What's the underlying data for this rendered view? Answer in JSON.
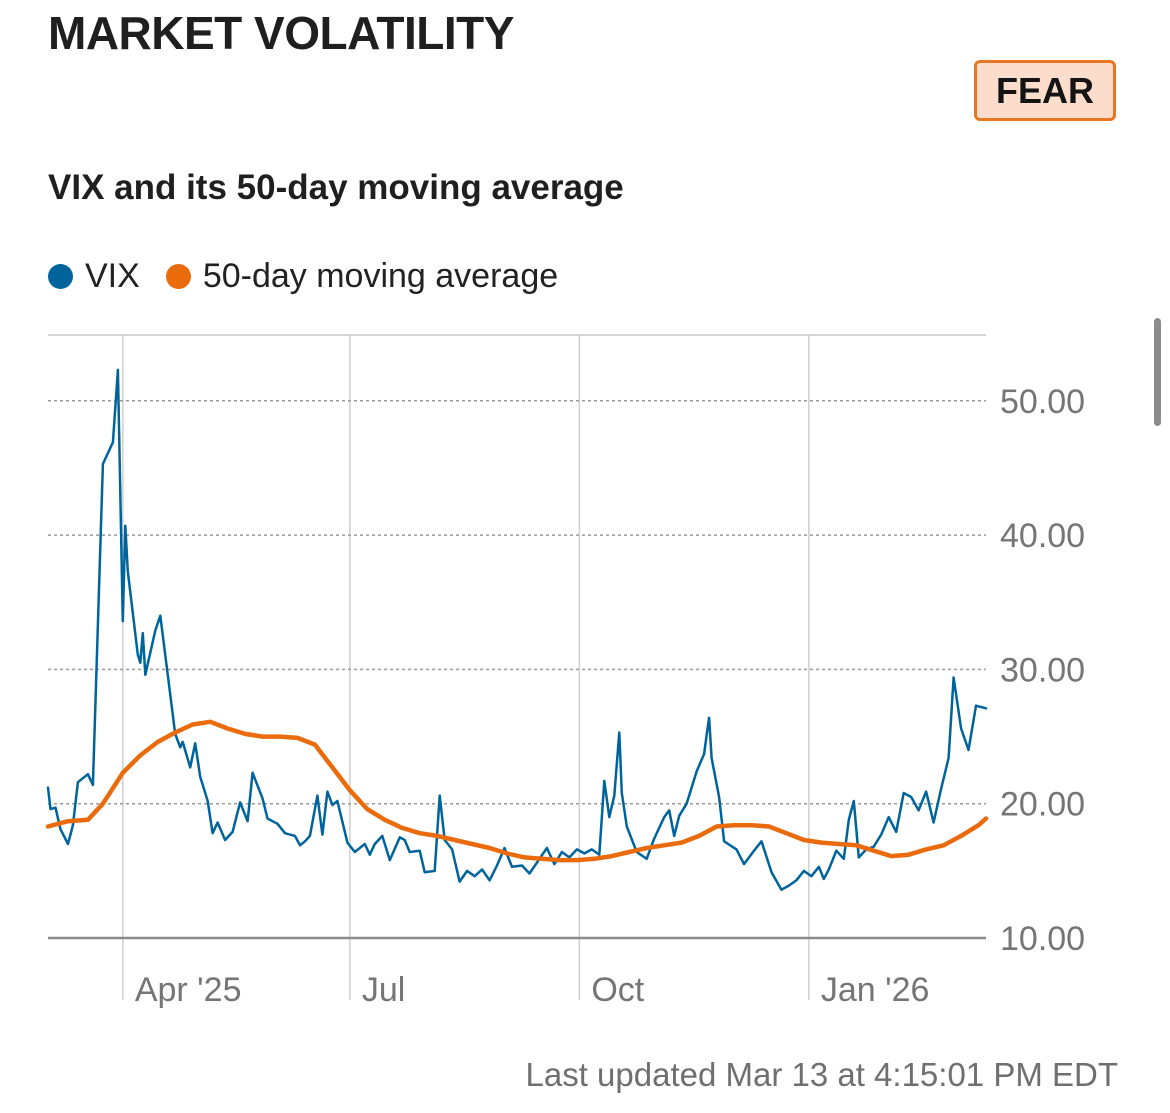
{
  "header": {
    "title": "MARKET VOLATILITY",
    "sentiment_badge": "FEAR",
    "subtitle": "VIX and its 50-day moving average"
  },
  "legend": [
    {
      "label": "VIX",
      "color": "#00649c"
    },
    {
      "label": "50-day moving average",
      "color": "#ea6b0c"
    }
  ],
  "footer": {
    "last_updated": "Last updated Mar 13 at 4:15:01 PM EDT"
  },
  "chart_data": {
    "type": "line",
    "title": "VIX and its 50-day moving average",
    "x_ticks": [
      {
        "label": "Apr '25",
        "date": "2025-04-01"
      },
      {
        "label": "Jul",
        "date": "2025-07-01"
      },
      {
        "label": "Oct",
        "date": "2025-10-01"
      },
      {
        "label": "Jan '26",
        "date": "2026-01-01"
      }
    ],
    "y_ticks": [
      {
        "label": "10.00",
        "value": 10
      },
      {
        "label": "20.00",
        "value": 20
      },
      {
        "label": "30.00",
        "value": 30
      },
      {
        "label": "40.00",
        "value": 40
      },
      {
        "label": "50.00",
        "value": 50
      }
    ],
    "xlim": [
      "2025-03-02",
      "2026-03-13"
    ],
    "ylim": [
      10,
      55
    ],
    "grid": true,
    "legend_position": "top-left",
    "series": [
      {
        "name": "VIX",
        "color": "#00649c",
        "points": [
          [
            "2025-03-02",
            21.2
          ],
          [
            "2025-03-03",
            19.6
          ],
          [
            "2025-03-05",
            19.7
          ],
          [
            "2025-03-07",
            18.1
          ],
          [
            "2025-03-10",
            17.0
          ],
          [
            "2025-03-12",
            18.4
          ],
          [
            "2025-03-14",
            21.6
          ],
          [
            "2025-03-18",
            22.2
          ],
          [
            "2025-03-20",
            21.4
          ],
          [
            "2025-03-24",
            45.3
          ],
          [
            "2025-03-28",
            46.9
          ],
          [
            "2025-03-30",
            52.3
          ],
          [
            "2025-04-01",
            33.6
          ],
          [
            "2025-04-02",
            40.7
          ],
          [
            "2025-04-03",
            37.3
          ],
          [
            "2025-04-07",
            31.1
          ],
          [
            "2025-04-08",
            30.5
          ],
          [
            "2025-04-09",
            32.7
          ],
          [
            "2025-04-10",
            29.6
          ],
          [
            "2025-04-14",
            32.9
          ],
          [
            "2025-04-16",
            34.0
          ],
          [
            "2025-04-22",
            25.2
          ],
          [
            "2025-04-24",
            24.2
          ],
          [
            "2025-04-25",
            24.6
          ],
          [
            "2025-04-28",
            22.7
          ],
          [
            "2025-04-30",
            24.5
          ],
          [
            "2025-05-02",
            22.0
          ],
          [
            "2025-05-05",
            20.2
          ],
          [
            "2025-05-07",
            17.8
          ],
          [
            "2025-05-09",
            18.6
          ],
          [
            "2025-05-12",
            17.3
          ],
          [
            "2025-05-15",
            17.9
          ],
          [
            "2025-05-18",
            20.1
          ],
          [
            "2025-05-21",
            18.7
          ],
          [
            "2025-05-23",
            22.3
          ],
          [
            "2025-05-27",
            20.4
          ],
          [
            "2025-05-29",
            18.9
          ],
          [
            "2025-06-02",
            18.5
          ],
          [
            "2025-06-05",
            17.8
          ],
          [
            "2025-06-09",
            17.6
          ],
          [
            "2025-06-11",
            16.9
          ],
          [
            "2025-06-13",
            17.2
          ],
          [
            "2025-06-15",
            17.6
          ],
          [
            "2025-06-18",
            20.6
          ],
          [
            "2025-06-20",
            17.7
          ],
          [
            "2025-06-22",
            20.9
          ],
          [
            "2025-06-24",
            19.9
          ],
          [
            "2025-06-26",
            20.2
          ],
          [
            "2025-06-30",
            17.1
          ],
          [
            "2025-07-03",
            16.4
          ],
          [
            "2025-07-07",
            17.0
          ],
          [
            "2025-07-09",
            16.2
          ],
          [
            "2025-07-11",
            17.0
          ],
          [
            "2025-07-14",
            17.6
          ],
          [
            "2025-07-17",
            15.8
          ],
          [
            "2025-07-21",
            17.5
          ],
          [
            "2025-07-23",
            17.3
          ],
          [
            "2025-07-25",
            16.4
          ],
          [
            "2025-07-29",
            16.5
          ],
          [
            "2025-07-31",
            14.9
          ],
          [
            "2025-08-04",
            15.0
          ],
          [
            "2025-08-06",
            20.6
          ],
          [
            "2025-08-08",
            17.3
          ],
          [
            "2025-08-11",
            16.6
          ],
          [
            "2025-08-14",
            14.2
          ],
          [
            "2025-08-17",
            15.0
          ],
          [
            "2025-08-20",
            14.6
          ],
          [
            "2025-08-23",
            15.1
          ],
          [
            "2025-08-26",
            14.3
          ],
          [
            "2025-08-29",
            15.4
          ],
          [
            "2025-09-01",
            16.7
          ],
          [
            "2025-09-04",
            15.3
          ],
          [
            "2025-09-08",
            15.4
          ],
          [
            "2025-09-11",
            14.8
          ],
          [
            "2025-09-15",
            15.9
          ],
          [
            "2025-09-18",
            16.7
          ],
          [
            "2025-09-21",
            15.5
          ],
          [
            "2025-09-24",
            16.4
          ],
          [
            "2025-09-27",
            16.0
          ],
          [
            "2025-09-30",
            16.6
          ],
          [
            "2025-10-03",
            16.3
          ],
          [
            "2025-10-06",
            16.6
          ],
          [
            "2025-10-09",
            16.2
          ],
          [
            "2025-10-11",
            21.7
          ],
          [
            "2025-10-13",
            19.0
          ],
          [
            "2025-10-15",
            20.6
          ],
          [
            "2025-10-17",
            25.3
          ],
          [
            "2025-10-18",
            20.8
          ],
          [
            "2025-10-20",
            18.3
          ],
          [
            "2025-10-24",
            16.4
          ],
          [
            "2025-10-28",
            15.9
          ],
          [
            "2025-10-31",
            17.4
          ],
          [
            "2025-11-04",
            19.0
          ],
          [
            "2025-11-06",
            19.5
          ],
          [
            "2025-11-08",
            17.6
          ],
          [
            "2025-11-10",
            19.1
          ],
          [
            "2025-11-13",
            20.0
          ],
          [
            "2025-11-17",
            22.4
          ],
          [
            "2025-11-20",
            23.7
          ],
          [
            "2025-11-21",
            25.1
          ],
          [
            "2025-11-22",
            26.4
          ],
          [
            "2025-11-23",
            23.4
          ],
          [
            "2025-11-26",
            20.5
          ],
          [
            "2025-11-28",
            17.2
          ],
          [
            "2025-12-03",
            16.6
          ],
          [
            "2025-12-06",
            15.5
          ],
          [
            "2025-12-10",
            16.5
          ],
          [
            "2025-12-13",
            17.2
          ],
          [
            "2025-12-17",
            14.9
          ],
          [
            "2025-12-21",
            13.6
          ],
          [
            "2025-12-24",
            13.9
          ],
          [
            "2025-12-27",
            14.3
          ],
          [
            "2025-12-30",
            15.0
          ],
          [
            "2026-01-02",
            14.6
          ],
          [
            "2026-01-05",
            15.3
          ],
          [
            "2026-01-07",
            14.4
          ],
          [
            "2026-01-09",
            15.1
          ],
          [
            "2026-01-12",
            16.5
          ],
          [
            "2026-01-15",
            15.9
          ],
          [
            "2026-01-17",
            18.8
          ],
          [
            "2026-01-19",
            20.2
          ],
          [
            "2026-01-21",
            16.0
          ],
          [
            "2026-01-24",
            16.6
          ],
          [
            "2026-01-27",
            16.8
          ],
          [
            "2026-01-30",
            17.7
          ],
          [
            "2026-02-02",
            19.0
          ],
          [
            "2026-02-05",
            17.9
          ],
          [
            "2026-02-08",
            20.8
          ],
          [
            "2026-02-11",
            20.5
          ],
          [
            "2026-02-14",
            19.5
          ],
          [
            "2026-02-17",
            20.9
          ],
          [
            "2026-02-20",
            18.6
          ],
          [
            "2026-02-23",
            21.1
          ],
          [
            "2026-02-26",
            23.4
          ],
          [
            "2026-02-28",
            29.4
          ],
          [
            "2026-03-03",
            25.6
          ],
          [
            "2026-03-06",
            24.0
          ],
          [
            "2026-03-09",
            27.3
          ],
          [
            "2026-03-13",
            27.1
          ]
        ]
      },
      {
        "name": "50-day moving average",
        "color": "#ea6b0c",
        "points": [
          [
            "2025-03-02",
            18.3
          ],
          [
            "2025-03-10",
            18.7
          ],
          [
            "2025-03-18",
            18.8
          ],
          [
            "2025-03-24",
            20.0
          ],
          [
            "2025-04-01",
            22.3
          ],
          [
            "2025-04-08",
            23.6
          ],
          [
            "2025-04-15",
            24.6
          ],
          [
            "2025-04-22",
            25.3
          ],
          [
            "2025-04-29",
            25.9
          ],
          [
            "2025-05-06",
            26.1
          ],
          [
            "2025-05-13",
            25.6
          ],
          [
            "2025-05-20",
            25.2
          ],
          [
            "2025-05-27",
            25.0
          ],
          [
            "2025-06-03",
            25.0
          ],
          [
            "2025-06-10",
            24.9
          ],
          [
            "2025-06-17",
            24.4
          ],
          [
            "2025-06-24",
            22.7
          ],
          [
            "2025-07-01",
            21.0
          ],
          [
            "2025-07-08",
            19.6
          ],
          [
            "2025-07-15",
            18.8
          ],
          [
            "2025-07-22",
            18.2
          ],
          [
            "2025-07-29",
            17.8
          ],
          [
            "2025-08-05",
            17.6
          ],
          [
            "2025-08-12",
            17.3
          ],
          [
            "2025-08-19",
            17.0
          ],
          [
            "2025-08-26",
            16.7
          ],
          [
            "2025-09-02",
            16.3
          ],
          [
            "2025-09-09",
            16.0
          ],
          [
            "2025-09-16",
            15.9
          ],
          [
            "2025-09-23",
            15.8
          ],
          [
            "2025-09-30",
            15.8
          ],
          [
            "2025-10-07",
            15.9
          ],
          [
            "2025-10-14",
            16.1
          ],
          [
            "2025-10-21",
            16.4
          ],
          [
            "2025-10-28",
            16.7
          ],
          [
            "2025-11-04",
            16.9
          ],
          [
            "2025-11-11",
            17.1
          ],
          [
            "2025-11-18",
            17.6
          ],
          [
            "2025-11-25",
            18.3
          ],
          [
            "2025-12-02",
            18.4
          ],
          [
            "2025-12-09",
            18.4
          ],
          [
            "2025-12-16",
            18.3
          ],
          [
            "2025-12-23",
            17.8
          ],
          [
            "2025-12-30",
            17.3
          ],
          [
            "2026-01-06",
            17.1
          ],
          [
            "2026-01-13",
            17.0
          ],
          [
            "2026-01-20",
            16.9
          ],
          [
            "2026-01-27",
            16.5
          ],
          [
            "2026-02-03",
            16.1
          ],
          [
            "2026-02-10",
            16.2
          ],
          [
            "2026-02-17",
            16.6
          ],
          [
            "2026-02-24",
            16.9
          ],
          [
            "2026-03-03",
            17.6
          ],
          [
            "2026-03-10",
            18.4
          ],
          [
            "2026-03-13",
            18.9
          ]
        ]
      }
    ]
  }
}
